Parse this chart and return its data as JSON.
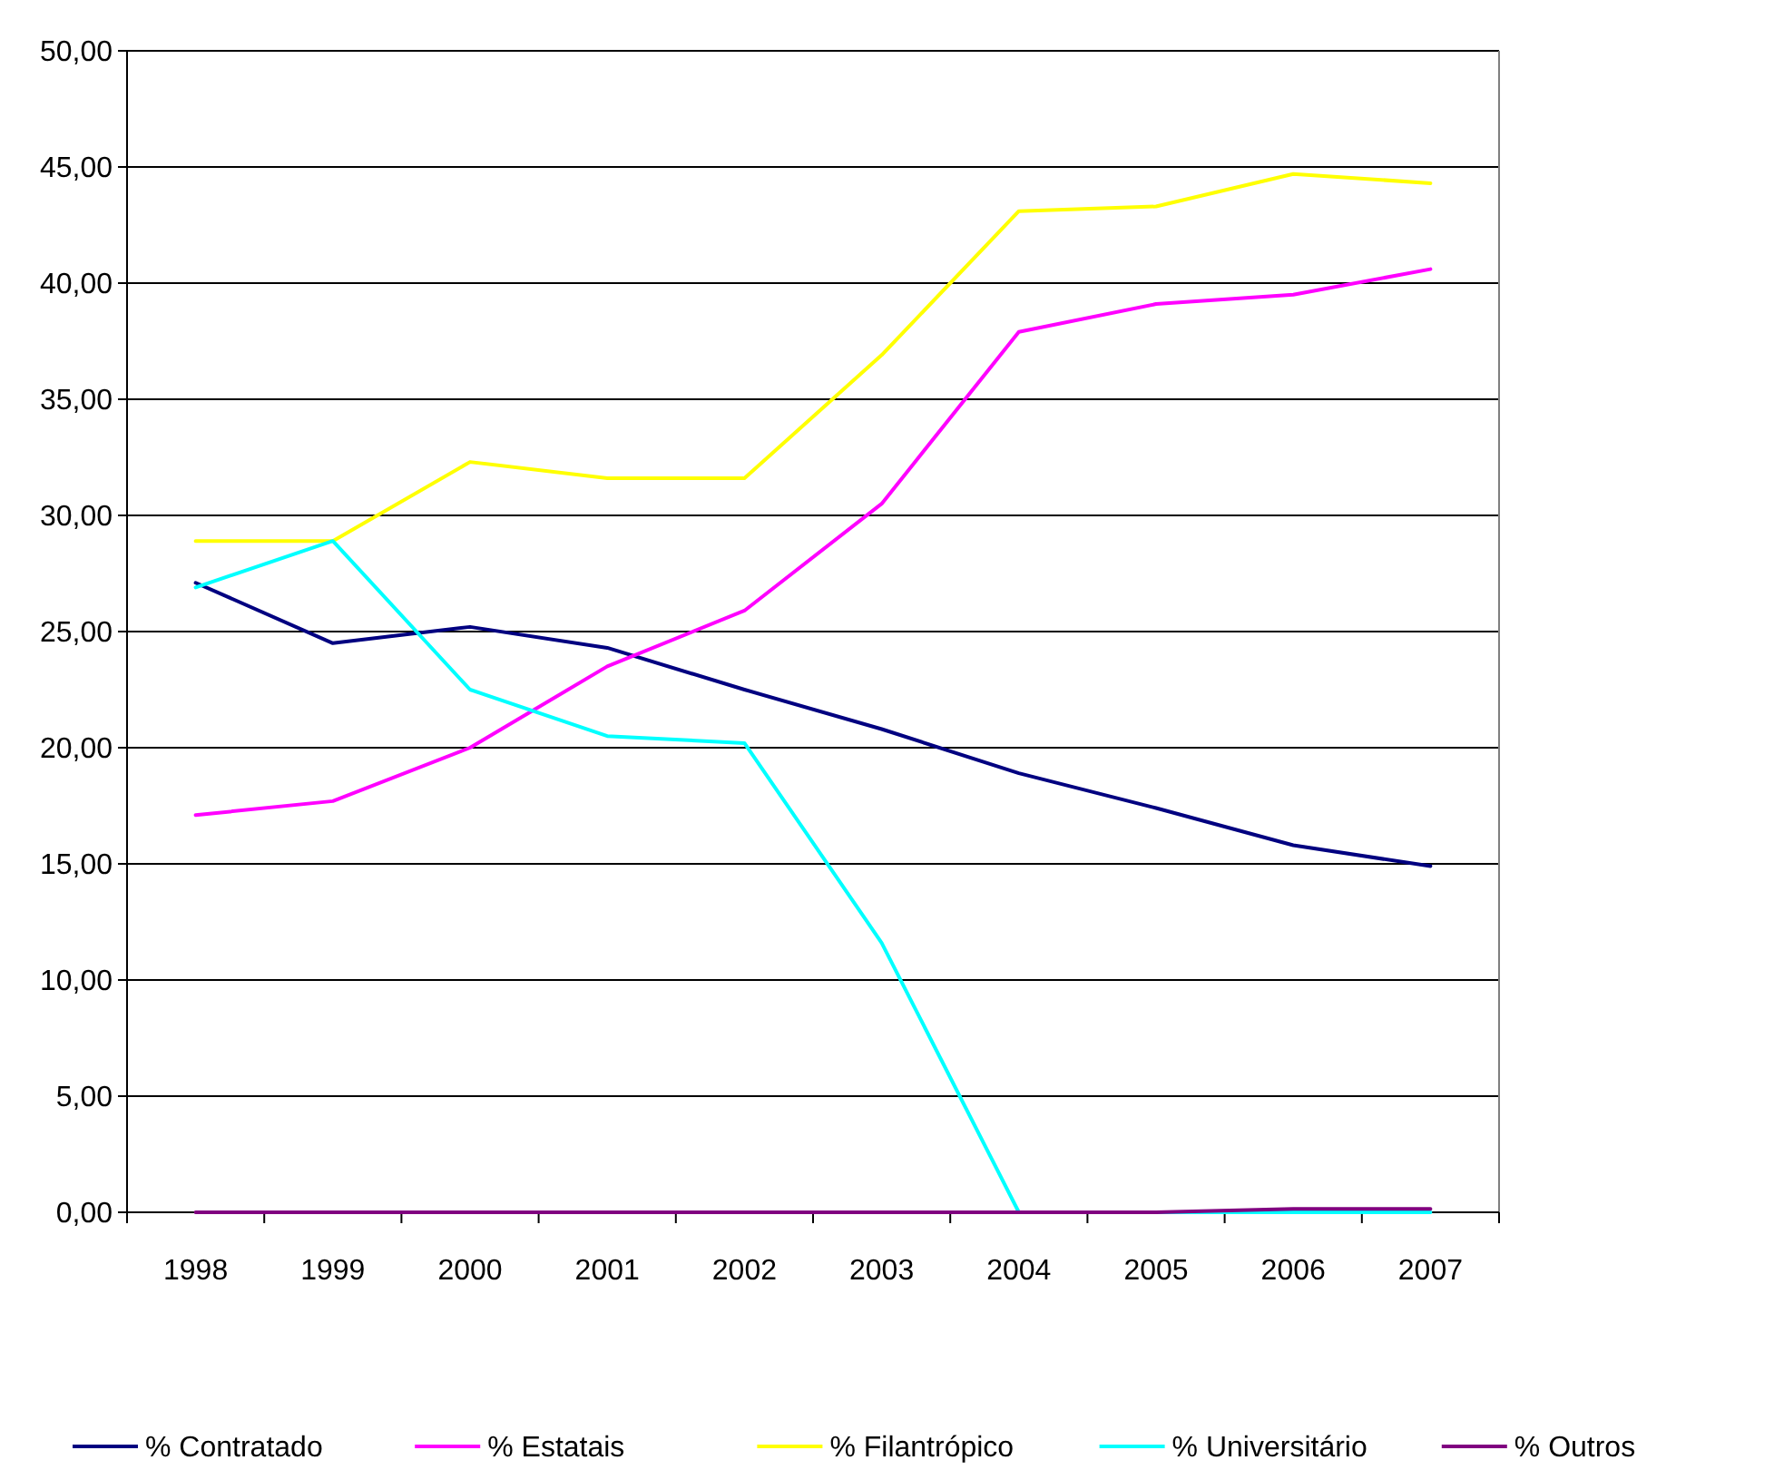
{
  "chart_data": {
    "type": "line",
    "categories": [
      "1998",
      "1999",
      "2000",
      "2001",
      "2002",
      "2003",
      "2004",
      "2005",
      "2006",
      "2007"
    ],
    "series": [
      {
        "name": "% Contratado",
        "color": "#000080",
        "values": [
          27.1,
          24.5,
          25.2,
          24.3,
          22.5,
          20.8,
          18.9,
          17.4,
          15.8,
          14.9
        ]
      },
      {
        "name": "% Estatais",
        "color": "#ff00ff",
        "values": [
          17.1,
          17.7,
          20.0,
          23.5,
          25.9,
          30.5,
          37.9,
          39.1,
          39.5,
          40.6
        ]
      },
      {
        "name": "% Filantrópico",
        "color": "#ffff00",
        "values": [
          28.9,
          28.9,
          32.3,
          31.6,
          31.6,
          36.9,
          43.1,
          43.3,
          44.7,
          44.3
        ]
      },
      {
        "name": "% Universitário",
        "color": "#00ffff",
        "values": [
          26.9,
          28.9,
          22.5,
          20.5,
          20.2,
          11.6,
          0,
          0,
          0,
          0
        ]
      },
      {
        "name": "% Outros",
        "color": "#800080",
        "values": [
          0,
          0,
          0,
          0,
          0,
          0,
          0,
          0,
          0.15,
          0.15
        ]
      }
    ],
    "ylim": [
      0,
      50
    ],
    "yticks": [
      {
        "value": 0,
        "label": "0,00"
      },
      {
        "value": 5,
        "label": "5,00"
      },
      {
        "value": 10,
        "label": "10,00"
      },
      {
        "value": 15,
        "label": "15,00"
      },
      {
        "value": 20,
        "label": "20,00"
      },
      {
        "value": 25,
        "label": "25,00"
      },
      {
        "value": 30,
        "label": "30,00"
      },
      {
        "value": 35,
        "label": "35,00"
      },
      {
        "value": 40,
        "label": "40,00"
      },
      {
        "value": 45,
        "label": "45,00"
      },
      {
        "value": 50,
        "label": "50,00"
      }
    ],
    "grid": "y",
    "legend": "bottom",
    "marker": "none",
    "line_style": "solid"
  }
}
